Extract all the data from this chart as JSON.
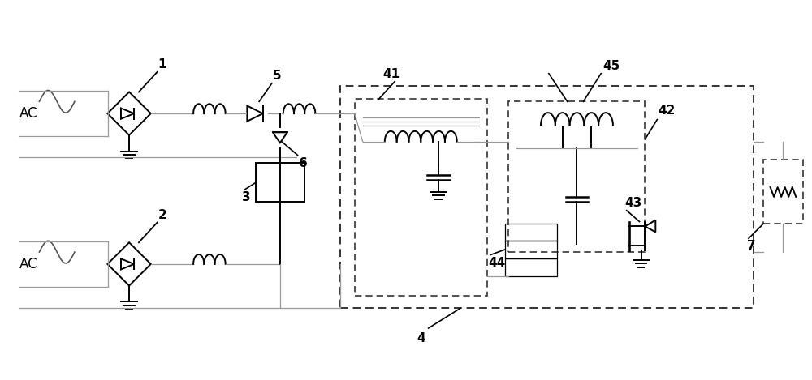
{
  "background_color": "#ffffff",
  "line_color": "#000000",
  "gray_line_color": "#999999",
  "dashed_box_color": "#333333",
  "ac_label": "AC",
  "label_1": "1",
  "label_2": "2",
  "label_3": "3",
  "label_4": "4",
  "label_5": "5",
  "label_6": "6",
  "label_7": "7",
  "label_41": "41",
  "label_42": "42",
  "label_43": "43",
  "label_44": "44",
  "label_45": "45",
  "fig_width": 10.0,
  "fig_height": 4.69,
  "xlim": [
    0,
    10.0
  ],
  "ylim": [
    0,
    4.69
  ]
}
